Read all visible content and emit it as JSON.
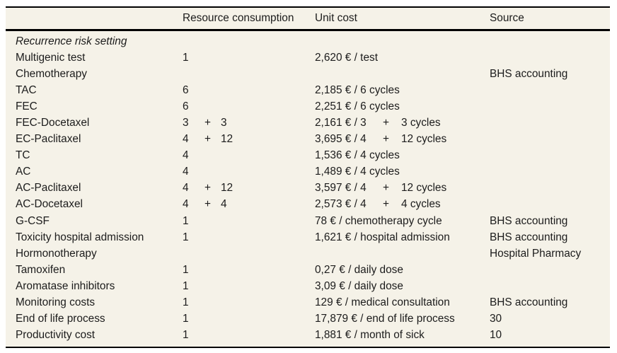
{
  "colors": {
    "page_background": "#ffffff",
    "table_background": "#f5f2e8",
    "text": "#1c1c1c",
    "rule": "#000000"
  },
  "table": {
    "header": {
      "name": "",
      "resource": "Resource consumption",
      "unit_cost": "Unit cost",
      "source": "Source"
    },
    "rows": [
      {
        "name": "Recurrence risk setting",
        "style": "italic",
        "res1": "",
        "res_plus": "",
        "res2": "",
        "cost1": "",
        "cost_plus": "",
        "cost2": "",
        "source": ""
      },
      {
        "name": "Multigenic test",
        "style": "",
        "res1": "1",
        "res_plus": "",
        "res2": "",
        "cost1": "2,620 € / test",
        "cost_plus": "",
        "cost2": "",
        "source": ""
      },
      {
        "name": "Chemotherapy",
        "style": "",
        "res1": "",
        "res_plus": "",
        "res2": "",
        "cost1": "",
        "cost_plus": "",
        "cost2": "",
        "source": "BHS accounting"
      },
      {
        "name": "TAC",
        "style": "",
        "res1": "6",
        "res_plus": "",
        "res2": "",
        "cost1": "2,185 € / 6 cycles",
        "cost_plus": "",
        "cost2": "",
        "source": ""
      },
      {
        "name": "FEC",
        "style": "",
        "res1": "6",
        "res_plus": "",
        "res2": "",
        "cost1": "2,251 € / 6 cycles",
        "cost_plus": "",
        "cost2": "",
        "source": ""
      },
      {
        "name": "FEC-Docetaxel",
        "style": "",
        "res1": "3",
        "res_plus": "+",
        "res2": "3",
        "cost1": "2,161 € / 3",
        "cost_plus": "+",
        "cost2": "3 cycles",
        "source": ""
      },
      {
        "name": "EC-Paclitaxel",
        "style": "",
        "res1": "4",
        "res_plus": "+",
        "res2": "12",
        "cost1": "3,695 € / 4",
        "cost_plus": "+",
        "cost2": "12 cycles",
        "source": ""
      },
      {
        "name": "TC",
        "style": "",
        "res1": "4",
        "res_plus": "",
        "res2": "",
        "cost1": "1,536 € / 4 cycles",
        "cost_plus": "",
        "cost2": "",
        "source": ""
      },
      {
        "name": "AC",
        "style": "",
        "res1": "4",
        "res_plus": "",
        "res2": "",
        "cost1": "1,489 € / 4 cycles",
        "cost_plus": "",
        "cost2": "",
        "source": ""
      },
      {
        "name": "AC-Paclitaxel",
        "style": "",
        "res1": "4",
        "res_plus": "+",
        "res2": "12",
        "cost1": "3,597 € / 4",
        "cost_plus": "+",
        "cost2": "12 cycles",
        "source": ""
      },
      {
        "name": "AC-Docetaxel",
        "style": "",
        "res1": "4",
        "res_plus": "+",
        "res2": "4",
        "cost1": "2,573 € / 4",
        "cost_plus": "+",
        "cost2": "4 cycles",
        "source": ""
      },
      {
        "name": "G-CSF",
        "style": "",
        "res1": "1",
        "res_plus": "",
        "res2": "",
        "cost1": "78 € / chemotherapy cycle",
        "cost_plus": "",
        "cost2": "",
        "source": "BHS accounting"
      },
      {
        "name": "Toxicity hospital admission",
        "style": "",
        "res1": "1",
        "res_plus": "",
        "res2": "",
        "cost1": "1,621 € / hospital admission",
        "cost_plus": "",
        "cost2": "",
        "source": "BHS accounting"
      },
      {
        "name": "Hormonotherapy",
        "style": "",
        "res1": "",
        "res_plus": "",
        "res2": "",
        "cost1": "",
        "cost_plus": "",
        "cost2": "",
        "source": "Hospital Pharmacy"
      },
      {
        "name": "Tamoxifen",
        "style": "",
        "res1": "1",
        "res_plus": "",
        "res2": "",
        "cost1": "0,27 € / daily dose",
        "cost_plus": "",
        "cost2": "",
        "source": ""
      },
      {
        "name": "Aromatase inhibitors",
        "style": "",
        "res1": "1",
        "res_plus": "",
        "res2": "",
        "cost1": "3,09 € / daily dose",
        "cost_plus": "",
        "cost2": "",
        "source": ""
      },
      {
        "name": "Monitoring costs",
        "style": "",
        "res1": "1",
        "res_plus": "",
        "res2": "",
        "cost1": "129 € / medical consultation",
        "cost_plus": "",
        "cost2": "",
        "source": "BHS accounting"
      },
      {
        "name": "End of life process",
        "style": "",
        "res1": "1",
        "res_plus": "",
        "res2": "",
        "cost1": "17,879 € / end of life process",
        "cost_plus": "",
        "cost2": "",
        "source": "30"
      },
      {
        "name": "Productivity cost",
        "style": "",
        "res1": "1",
        "res_plus": "",
        "res2": "",
        "cost1": "1,881 € / month of sick",
        "cost_plus": "",
        "cost2": "",
        "source": "10"
      }
    ]
  }
}
